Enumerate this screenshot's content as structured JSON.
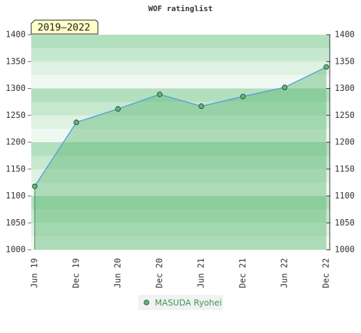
{
  "chart_data": {
    "type": "line",
    "title": "WOF ratinglist",
    "annotation": "2019–2022",
    "categories": [
      "Jun 19",
      "Dec 19",
      "Jun 20",
      "Dec 20",
      "Jun 21",
      "Dec 21",
      "Jun 22",
      "Dec 22"
    ],
    "series": [
      {
        "name": "MASUDA Ryohei",
        "color": "#5aa0d8",
        "marker_color": "#5cb870",
        "values": [
          1118,
          1237,
          1262,
          1289,
          1267,
          1285,
          1302,
          1340
        ]
      }
    ],
    "ylim": [
      1000,
      1400
    ],
    "yticks": [
      1000,
      1050,
      1100,
      1150,
      1200,
      1250,
      1300,
      1350,
      1400
    ],
    "y2lim": [
      1000,
      1400
    ],
    "y2ticks": [
      1000,
      1050,
      1100,
      1150,
      1200,
      1250,
      1300,
      1350,
      1400
    ],
    "legend": "bottom"
  }
}
